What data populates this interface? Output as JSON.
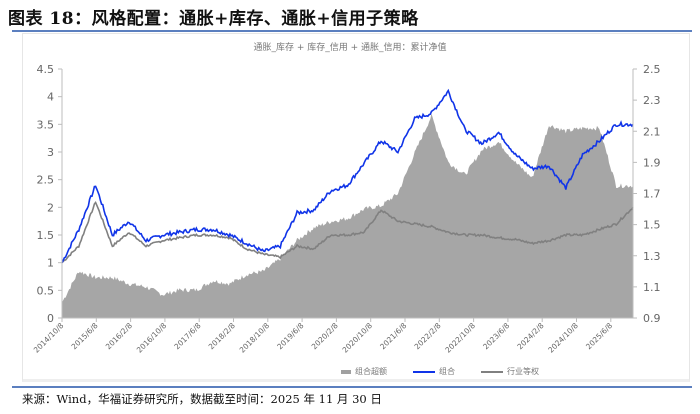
{
  "header": {
    "title": "图表 18：风格配置：通胀+库存、通胀+信用子策略"
  },
  "colors": {
    "rule": "#5b7fbf",
    "combo_line": "#1034e8",
    "benchmark_line": "#808080",
    "excess_area": "#a6a6a6"
  },
  "legend": {
    "excess": "组合超额",
    "combo": "组合",
    "benchmark": "行业等权"
  },
  "footer": {
    "source": "来源：Wind，华福证券研究所，数据截至时间：2025 年 11 月 30 日"
  },
  "chart_data": {
    "type": "line",
    "title": "通胀_库存 + 库存_信用 + 通胀_信用：累计净值",
    "xlabel": "",
    "ylabel_left": "",
    "ylabel_right": "",
    "ylim_left": [
      0,
      4.5
    ],
    "ylim_right": [
      0.9,
      2.5
    ],
    "yticks_left": [
      "0",
      "0.5",
      "1",
      "1.5",
      "2",
      "2.5",
      "3",
      "3.5",
      "4",
      "4.5"
    ],
    "yticks_right": [
      "0.9",
      "1.1",
      "1.3",
      "1.5",
      "1.7",
      "1.9",
      "2.1",
      "2.3",
      "2.5"
    ],
    "x_tick_labels": [
      "2014/10/8",
      "2015/6/8",
      "2016/2/8",
      "2016/10/8",
      "2017/6/8",
      "2018/2/8",
      "2018/10/8",
      "2019/6/8",
      "2020/2/8",
      "2020/10/8",
      "2021/6/8",
      "2022/2/8",
      "2022/10/8",
      "2023/6/8",
      "2024/2/8",
      "2024/10/8",
      "2025/6/8"
    ],
    "grid": false,
    "legend_position": "bottom",
    "x": [
      "2014/10/8",
      "2015/2/8",
      "2015/6/8",
      "2015/10/8",
      "2016/2/8",
      "2016/6/8",
      "2016/10/8",
      "2017/2/8",
      "2017/6/8",
      "2017/10/8",
      "2018/2/8",
      "2018/6/8",
      "2018/10/8",
      "2019/2/8",
      "2019/6/8",
      "2019/10/8",
      "2020/2/8",
      "2020/6/8",
      "2020/10/8",
      "2021/2/8",
      "2021/6/8",
      "2021/10/8",
      "2022/2/8",
      "2022/6/8",
      "2022/10/8",
      "2023/2/8",
      "2023/6/8",
      "2023/10/8",
      "2024/2/8",
      "2024/6/8",
      "2024/10/8",
      "2025/2/8",
      "2025/6/8",
      "2025/10/8",
      "2025/11/30"
    ],
    "series": [
      {
        "name": "组合",
        "axis": "left",
        "type": "line",
        "values": [
          1.0,
          1.6,
          2.4,
          1.5,
          1.75,
          1.4,
          1.5,
          1.55,
          1.6,
          1.6,
          1.5,
          1.35,
          1.2,
          1.3,
          1.9,
          1.95,
          2.3,
          2.4,
          2.8,
          3.2,
          3.0,
          3.6,
          3.7,
          4.1,
          3.4,
          3.15,
          3.35,
          2.95,
          2.7,
          2.75,
          2.35,
          2.95,
          3.2,
          3.5,
          3.5
        ]
      },
      {
        "name": "行业等权",
        "axis": "left",
        "type": "line",
        "values": [
          1.0,
          1.3,
          2.1,
          1.3,
          1.55,
          1.3,
          1.4,
          1.45,
          1.5,
          1.5,
          1.45,
          1.25,
          1.15,
          1.1,
          1.3,
          1.25,
          1.5,
          1.5,
          1.55,
          1.95,
          1.75,
          1.7,
          1.65,
          1.55,
          1.5,
          1.5,
          1.45,
          1.42,
          1.35,
          1.4,
          1.5,
          1.5,
          1.6,
          1.7,
          2.0
        ]
      },
      {
        "name": "组合超额",
        "axis": "right",
        "type": "area",
        "values": [
          1.0,
          1.2,
          1.16,
          1.16,
          1.12,
          1.1,
          1.05,
          1.08,
          1.08,
          1.14,
          1.12,
          1.18,
          1.2,
          1.28,
          1.4,
          1.48,
          1.52,
          1.54,
          1.6,
          1.62,
          1.7,
          1.96,
          2.2,
          1.9,
          1.82,
          1.98,
          2.03,
          1.9,
          1.8,
          2.14,
          2.1,
          2.12,
          2.12,
          1.75,
          1.75
        ]
      }
    ]
  }
}
